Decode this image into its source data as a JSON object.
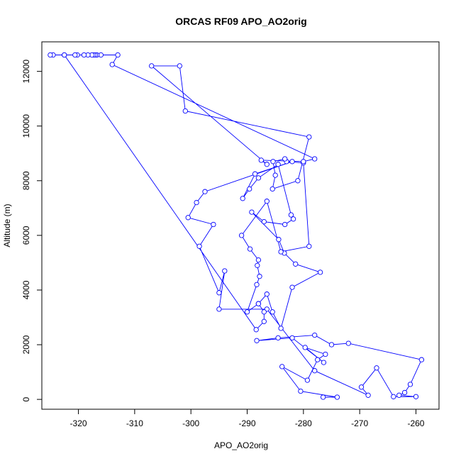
{
  "chart_data": {
    "type": "line",
    "title": "ORCAS RF09 APO_AO2orig",
    "xlabel": "APO_AO2orig",
    "ylabel": "Altitude (m)",
    "xlim": [
      -326.5,
      -255.9
    ],
    "ylim": [
      -360,
      13080
    ],
    "xticks": [
      -320,
      -310,
      -300,
      -290,
      -280,
      -270,
      -260
    ],
    "yticks": [
      0,
      2000,
      4000,
      6000,
      8000,
      10000,
      12000
    ],
    "grid": false,
    "legend": "none",
    "colors": {
      "series": "#0000ff",
      "axis": "#000000"
    },
    "series": [
      {
        "x": [
          -276.5,
          -274.0,
          -280.5,
          -283.8,
          -279.3,
          -277.5,
          -276.1,
          -279.7,
          -276.4,
          -282.0,
          -288.3,
          -284.5,
          -278.0,
          -275.0,
          -272.0,
          -259.0,
          -261.0,
          -262.0,
          -263.0,
          -260.0,
          -264.0,
          -267.0,
          -269.7,
          -268.5,
          -278.0,
          -286.5,
          -295.0,
          -294.0,
          -295.0,
          -298.5,
          -296.0,
          -300.5,
          -299.0,
          -297.5,
          -282.0,
          -288.6,
          -290.8,
          -289.6,
          -288.0,
          -284.5,
          -282.2,
          -281.8,
          -283.3,
          -287.0,
          -289.2,
          -284.4,
          -283.4,
          -281.4,
          -277.0,
          -282.0,
          -284.0,
          -285.5,
          -286.5,
          -288.0,
          -290.0,
          -288.3,
          -287.8,
          -288.2,
          -288.0,
          -289.5,
          -291.0,
          -286.5,
          -284.0,
          -279.0,
          -280.0,
          -283.0,
          -283.3,
          -285.4,
          -285.0,
          -285.5,
          -281.0,
          -279.0,
          -301.0,
          -302.0,
          -307.0,
          -286.5,
          -287.5,
          -280.0,
          -278.0,
          -314.0,
          -313.0,
          -316.0,
          -316.7,
          -317.0,
          -317.3,
          -317.6,
          -318.3,
          -319.0,
          -320.2,
          -320.6,
          -322.5,
          -324.5,
          -325.0,
          -322.5,
          -288.4,
          -287.0,
          -287.0,
          -288.0
        ],
        "y": [
          80,
          80,
          300,
          1200,
          700,
          1450,
          1650,
          1900,
          1350,
          2250,
          2150,
          2250,
          2350,
          2000,
          2050,
          1450,
          550,
          250,
          150,
          100,
          100,
          1150,
          450,
          150,
          1050,
          3300,
          3300,
          4700,
          3900,
          5600,
          6400,
          6650,
          7200,
          7600,
          8700,
          8250,
          7350,
          7700,
          8100,
          8600,
          6750,
          6600,
          6400,
          6500,
          6850,
          5850,
          5350,
          4950,
          4650,
          4100,
          2600,
          3200,
          3850,
          3500,
          3200,
          4200,
          4500,
          4900,
          5100,
          5500,
          6000,
          7250,
          5400,
          5600,
          8650,
          8700,
          8800,
          8700,
          8200,
          7700,
          8000,
          9600,
          10550,
          12200,
          12200,
          8600,
          8750,
          8700,
          8800,
          12250,
          12600,
          12600,
          12600,
          12600,
          12600,
          12600,
          12600,
          12600,
          12600,
          12600,
          12600,
          12600,
          12600,
          12600,
          2550,
          2850,
          3200,
          3500
        ]
      }
    ]
  }
}
